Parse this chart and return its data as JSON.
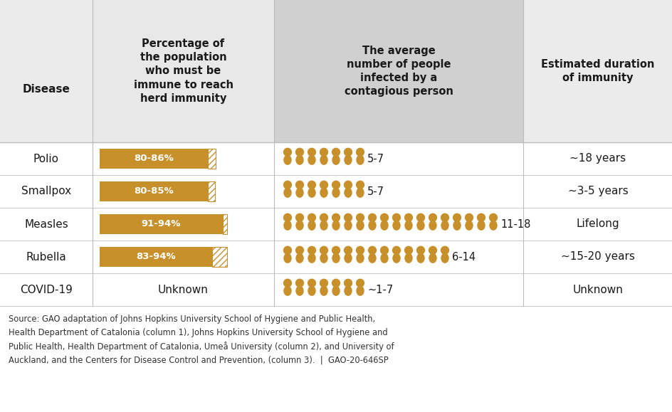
{
  "diseases": [
    "Polio",
    "Smallpox",
    "Measles",
    "Rubella",
    "COVID-19"
  ],
  "pct_labels": [
    "80-86%",
    "80-85%",
    "91-94%",
    "83-94%",
    "Unknown"
  ],
  "bar_lower": [
    80,
    80,
    91,
    83,
    0
  ],
  "bar_upper": [
    86,
    85,
    94,
    94,
    0
  ],
  "person_counts": [
    7,
    7,
    18,
    14,
    7
  ],
  "person_labels": [
    "5-7",
    "5-7",
    "11-18",
    "6-14",
    "~1-7"
  ],
  "duration_labels": [
    "~18 years",
    "~3-5 years",
    "Lifelong",
    "~15-20 years",
    "Unknown"
  ],
  "bar_color": "#C8902A",
  "person_color": "#C8902A",
  "bg_header_light": "#EBEBEB",
  "bg_header_mid": "#DEDEDE",
  "bg_col2_header": "#D0D0D0",
  "bg_white": "#FFFFFF",
  "text_dark": "#1A1A1A",
  "text_source": "#333333",
  "source_text": "Source: GAO adaptation of Johns Hopkins University School of Hygiene and Public Health,\nHealth Department of Catalonia (column 1), Johns Hopkins University School of Hygiene and\nPublic Health, Health Department of Catalonia, Umeå University (column 2), and University of\nAuckland, and the Centers for Disease Control and Prevention, (column 3).  |  GAO-20-646SP",
  "col1_header": "Percentage of\nthe population\nwho must be\nimmune to reach\nherd immunity",
  "col2_header": "The average\nnumber of people\ninfected by a\ncontagious person",
  "col3_header": "Estimated duration\nof immunity",
  "disease_header": "Disease",
  "fig_w": 9.45,
  "fig_h": 5.79,
  "dpi": 100
}
